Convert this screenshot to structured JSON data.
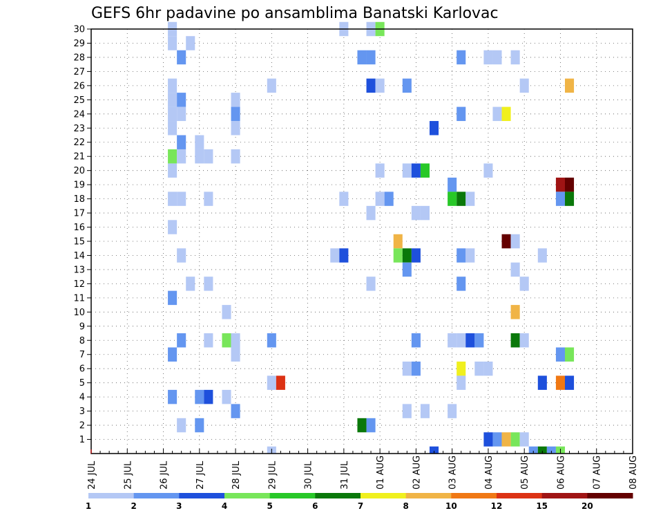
{
  "chart_data": {
    "type": "heatmap",
    "title": "GEFS 6hr padavine po ansamblima Banatski Karlovac",
    "xlabel": "",
    "ylabel": "",
    "x_ticks": [
      "24 JUL",
      "25 JUL",
      "26 JUL",
      "27 JUL",
      "28 JUL",
      "29 JUL",
      "30 JUL",
      "31 JUL",
      "01 AUG",
      "02 AUG",
      "03 AUG",
      "04 AUG",
      "05 AUG",
      "06 AUG",
      "07 AUG",
      "08 AUG"
    ],
    "y_ticks": [
      "1",
      "2",
      "3",
      "4",
      "5",
      "6",
      "7",
      "8",
      "9",
      "10",
      "11",
      "12",
      "13",
      "14",
      "15",
      "16",
      "17",
      "18",
      "19",
      "20",
      "21",
      "22",
      "23",
      "24",
      "25",
      "26",
      "27",
      "28",
      "29",
      "30"
    ],
    "x_unit": "6-hour step from 24 JUL 00",
    "y_unit": "ensemble member",
    "colorbar": {
      "labels": [
        "1",
        "2",
        "3",
        "4",
        "5",
        "6",
        "7",
        "8",
        "10",
        "12",
        "15",
        "20"
      ],
      "colors": [
        "#b4c8f5",
        "#6496f0",
        "#1e50dc",
        "#78e65a",
        "#28c828",
        "#0a780a",
        "#f0f01e",
        "#f0b446",
        "#f07814",
        "#dc3214",
        "#a01414",
        "#640000"
      ]
    },
    "cells": [
      [
        9,
        30,
        1
      ],
      [
        9,
        29,
        1
      ],
      [
        11,
        29,
        1
      ],
      [
        10,
        28,
        2
      ],
      [
        9,
        26,
        1
      ],
      [
        9,
        25,
        1
      ],
      [
        10,
        25,
        2
      ],
      [
        9,
        24,
        1
      ],
      [
        10,
        24,
        1
      ],
      [
        9,
        23,
        1
      ],
      [
        10,
        22,
        2
      ],
      [
        12,
        22,
        1
      ],
      [
        9,
        21,
        4
      ],
      [
        10,
        21,
        1
      ],
      [
        12,
        21,
        1
      ],
      [
        13,
        21,
        1
      ],
      [
        9,
        20,
        1
      ],
      [
        9,
        18,
        1
      ],
      [
        10,
        18,
        1
      ],
      [
        9,
        16,
        1
      ],
      [
        10,
        14,
        1
      ],
      [
        9,
        11,
        2
      ],
      [
        10,
        8,
        2
      ],
      [
        9,
        7,
        2
      ],
      [
        9,
        4,
        2
      ],
      [
        10,
        2,
        1
      ],
      [
        11,
        12,
        1
      ],
      [
        13,
        18,
        1
      ],
      [
        13,
        12,
        1
      ],
      [
        12,
        4,
        2
      ],
      [
        13,
        4,
        3
      ],
      [
        13,
        8,
        1
      ],
      [
        12,
        2,
        2
      ],
      [
        16,
        25,
        1
      ],
      [
        16,
        24,
        2
      ],
      [
        16,
        23,
        1
      ],
      [
        16,
        21,
        1
      ],
      [
        15,
        10,
        1
      ],
      [
        15,
        8,
        4
      ],
      [
        16,
        8,
        1
      ],
      [
        16,
        7,
        1
      ],
      [
        15,
        4,
        1
      ],
      [
        16,
        3,
        2
      ],
      [
        20,
        26,
        1
      ],
      [
        20,
        8,
        2
      ],
      [
        20,
        5,
        1
      ],
      [
        21,
        5,
        10
      ],
      [
        20,
        0,
        1
      ],
      [
        28,
        30,
        1
      ],
      [
        28,
        18,
        1
      ],
      [
        27,
        14,
        1
      ],
      [
        28,
        14,
        3
      ],
      [
        31,
        30,
        1
      ],
      [
        32,
        30,
        4
      ],
      [
        30,
        28,
        2
      ],
      [
        31,
        28,
        2
      ],
      [
        31,
        26,
        3
      ],
      [
        32,
        26,
        1
      ],
      [
        32,
        20,
        1
      ],
      [
        32,
        18,
        1
      ],
      [
        33,
        18,
        2
      ],
      [
        31,
        17,
        1
      ],
      [
        31,
        12,
        1
      ],
      [
        30,
        2,
        6
      ],
      [
        31,
        2,
        2
      ],
      [
        35,
        26,
        2
      ],
      [
        35,
        20,
        1
      ],
      [
        36,
        17,
        1
      ],
      [
        37,
        17,
        1
      ],
      [
        34,
        15,
        8
      ],
      [
        34,
        14,
        4
      ],
      [
        35,
        14,
        6
      ],
      [
        36,
        14,
        3
      ],
      [
        35,
        13,
        2
      ],
      [
        36,
        8,
        2
      ],
      [
        35,
        6,
        1
      ],
      [
        36,
        6,
        2
      ],
      [
        35,
        3,
        1
      ],
      [
        37,
        3,
        1
      ],
      [
        36,
        20,
        3
      ],
      [
        37,
        20,
        5
      ],
      [
        38,
        23,
        3
      ],
      [
        38,
        0,
        3
      ],
      [
        41,
        28,
        2
      ],
      [
        41,
        24,
        2
      ],
      [
        40,
        19,
        2
      ],
      [
        40,
        18,
        5
      ],
      [
        41,
        18,
        6
      ],
      [
        42,
        18,
        1
      ],
      [
        41,
        14,
        2
      ],
      [
        42,
        14,
        1
      ],
      [
        41,
        12,
        2
      ],
      [
        40,
        8,
        1
      ],
      [
        41,
        8,
        1
      ],
      [
        42,
        8,
        3
      ],
      [
        43,
        8,
        2
      ],
      [
        41,
        6,
        7
      ],
      [
        41,
        5,
        1
      ],
      [
        40,
        3,
        1
      ],
      [
        44,
        28,
        1
      ],
      [
        45,
        28,
        1
      ],
      [
        47,
        28,
        1
      ],
      [
        48,
        26,
        1
      ],
      [
        45,
        24,
        1
      ],
      [
        46,
        24,
        7
      ],
      [
        44,
        20,
        1
      ],
      [
        46,
        15,
        12
      ],
      [
        47,
        15,
        1
      ],
      [
        47,
        13,
        1
      ],
      [
        48,
        12,
        1
      ],
      [
        47,
        10,
        8
      ],
      [
        47,
        8,
        6
      ],
      [
        48,
        8,
        1
      ],
      [
        43,
        6,
        1
      ],
      [
        44,
        6,
        1
      ],
      [
        44,
        1,
        3
      ],
      [
        45,
        1,
        2
      ],
      [
        46,
        1,
        8
      ],
      [
        47,
        1,
        4
      ],
      [
        48,
        1,
        1
      ],
      [
        53,
        26,
        8
      ],
      [
        52,
        19,
        11
      ],
      [
        53,
        19,
        12
      ],
      [
        52,
        18,
        2
      ],
      [
        53,
        18,
        6
      ],
      [
        50,
        14,
        1
      ],
      [
        52,
        7,
        2
      ],
      [
        53,
        7,
        4
      ],
      [
        50,
        5,
        3
      ],
      [
        52,
        5,
        9
      ],
      [
        53,
        5,
        3
      ],
      [
        49,
        0,
        2
      ],
      [
        50,
        0,
        6
      ],
      [
        51,
        0,
        2
      ],
      [
        52,
        0,
        4
      ]
    ]
  }
}
